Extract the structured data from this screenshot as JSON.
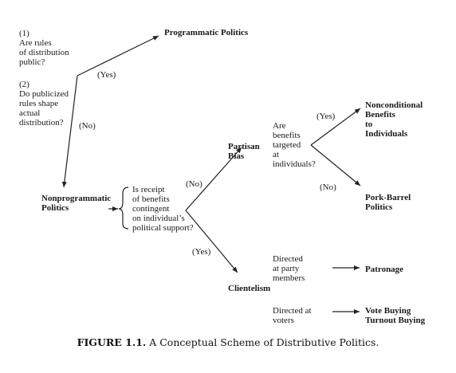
{
  "diagram": {
    "q1": {
      "number": "(1)",
      "lines": [
        "Are rules",
        "of distribution",
        "public?"
      ]
    },
    "q2": {
      "number": "(2)",
      "lines": [
        "Do publicized",
        "rules shape",
        "actual",
        "distribution?"
      ]
    },
    "q3": {
      "lines": [
        "Is receipt",
        "of benefits",
        "contingent",
        "on individual’s",
        "political support?"
      ]
    },
    "q4": {
      "lines": [
        "Are",
        "benefits",
        "targeted",
        "at",
        "individuals?"
      ]
    },
    "yes_label": "(Yes)",
    "no_label": "(No)",
    "nodes": {
      "programmatic": "Programmatic Politics",
      "nonprogrammatic": [
        "Nonprogrammatic",
        "Politics"
      ],
      "partisan_bias": [
        "Partisan",
        "Bias"
      ],
      "clientelism": "Clientelism",
      "nonconditional": [
        "Nonconditional",
        "Benefits",
        "to",
        "Individuals"
      ],
      "pork_barrel": [
        "Pork-Barrel",
        "Politics"
      ],
      "patronage": "Patronage",
      "vote_buying": [
        "Vote Buying",
        "Turnout Buying"
      ]
    },
    "directed_party": [
      "Directed",
      "at party",
      "members"
    ],
    "directed_voters": [
      "Directed at",
      "voters"
    ]
  },
  "caption": {
    "label": "FIGURE 1.1.",
    "text": " A Conceptual Scheme of Distributive Politics."
  }
}
